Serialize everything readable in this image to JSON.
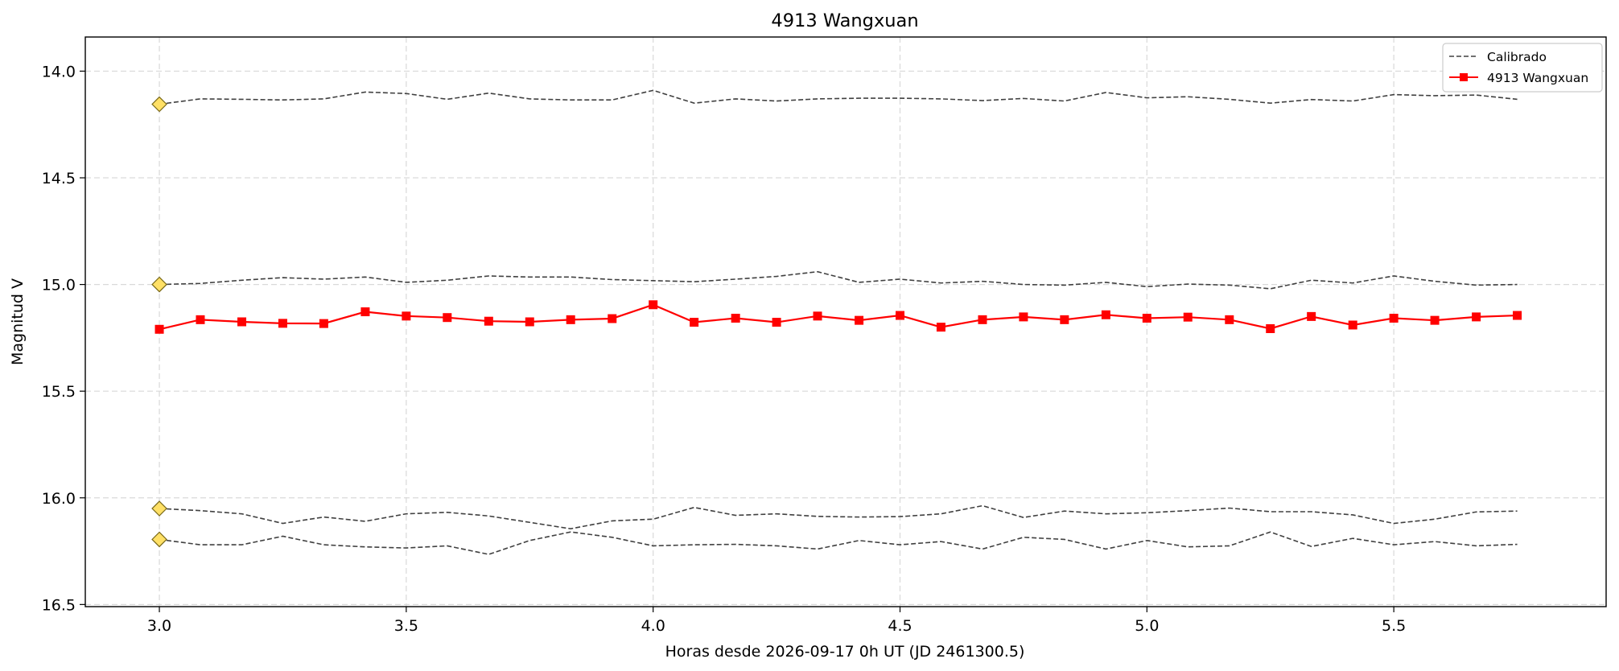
{
  "chart_data": {
    "type": "line",
    "title": "4913 Wangxuan",
    "xlabel": "Horas desde 2026-09-17 0h UT (JD 2461300.5)",
    "ylabel": "Magnitud V",
    "xlim": [
      2.85,
      5.93
    ],
    "ylim": [
      16.51,
      13.84
    ],
    "y_inverted": true,
    "grid": true,
    "x_ticks": [
      3.0,
      3.5,
      4.0,
      4.5,
      5.0,
      5.5
    ],
    "x_tick_labels": [
      "3.0",
      "3.5",
      "4.0",
      "4.5",
      "5.0",
      "5.5"
    ],
    "y_ticks": [
      14.0,
      14.5,
      15.0,
      15.5,
      16.0,
      16.5
    ],
    "y_tick_labels": [
      "14.0",
      "14.5",
      "15.0",
      "15.5",
      "16.0",
      "16.5"
    ],
    "legend": {
      "placement": "top-right",
      "entries": [
        {
          "label": "Calibrado",
          "style": "dashed",
          "color": "#404040"
        },
        {
          "label": "4913 Wangxuan",
          "style": "solid-square",
          "color": "#ff0000"
        }
      ]
    },
    "x": [
      3.0,
      3.083,
      3.167,
      3.25,
      3.333,
      3.417,
      3.5,
      3.583,
      3.667,
      3.75,
      3.833,
      3.917,
      4.0,
      4.083,
      4.167,
      4.25,
      4.333,
      4.417,
      4.5,
      4.583,
      4.667,
      4.75,
      4.833,
      4.917,
      5.0,
      5.083,
      5.167,
      5.25,
      5.333,
      5.417,
      5.5,
      5.583,
      5.667,
      5.75
    ],
    "series": [
      {
        "name": "4913 Wangxuan",
        "color": "#ff0000",
        "marker": "square",
        "values": [
          15.21,
          15.165,
          15.175,
          15.182,
          15.183,
          15.128,
          15.148,
          15.155,
          15.172,
          15.175,
          15.165,
          15.16,
          15.095,
          15.177,
          15.158,
          15.177,
          15.148,
          15.168,
          15.145,
          15.2,
          15.165,
          15.152,
          15.165,
          15.142,
          15.158,
          15.153,
          15.165,
          15.207,
          15.15,
          15.19,
          15.158,
          15.168,
          15.152,
          15.145
        ]
      },
      {
        "name": "Calibrado",
        "color": "#404040",
        "style": "dashed",
        "values": [
          14.155,
          14.13,
          14.132,
          14.135,
          14.13,
          14.098,
          14.105,
          14.132,
          14.103,
          14.13,
          14.135,
          14.135,
          14.09,
          14.15,
          14.13,
          14.14,
          14.13,
          14.127,
          14.127,
          14.13,
          14.138,
          14.128,
          14.14,
          14.1,
          14.125,
          14.12,
          14.132,
          14.15,
          14.133,
          14.14,
          14.11,
          14.115,
          14.112,
          14.132
        ]
      },
      {
        "name": "Calibrado",
        "color": "#404040",
        "style": "dashed",
        "values": [
          15.0,
          14.995,
          14.98,
          14.968,
          14.975,
          14.965,
          14.99,
          14.98,
          14.96,
          14.965,
          14.965,
          14.977,
          14.982,
          14.987,
          14.975,
          14.962,
          14.94,
          14.99,
          14.975,
          14.993,
          14.985,
          15.0,
          15.003,
          14.99,
          15.01,
          14.998,
          15.003,
          15.02,
          14.98,
          14.993,
          14.96,
          14.985,
          15.003,
          15.0
        ]
      },
      {
        "name": "Calibrado",
        "color": "#404040",
        "style": "dashed",
        "values": [
          16.05,
          16.06,
          16.075,
          16.12,
          16.09,
          16.11,
          16.075,
          16.068,
          16.085,
          16.115,
          16.145,
          16.108,
          16.1,
          16.045,
          16.082,
          16.075,
          16.087,
          16.09,
          16.088,
          16.075,
          16.037,
          16.092,
          16.062,
          16.075,
          16.07,
          16.06,
          16.048,
          16.065,
          16.065,
          16.08,
          16.12,
          16.1,
          16.066,
          16.062
        ]
      },
      {
        "name": "Calibrado",
        "color": "#404040",
        "style": "dashed",
        "values": [
          16.195,
          16.22,
          16.22,
          16.18,
          16.22,
          16.23,
          16.235,
          16.225,
          16.265,
          16.2,
          16.16,
          16.185,
          16.225,
          16.22,
          16.218,
          16.225,
          16.24,
          16.2,
          16.22,
          16.205,
          16.24,
          16.185,
          16.195,
          16.24,
          16.2,
          16.23,
          16.225,
          16.16,
          16.228,
          16.19,
          16.22,
          16.205,
          16.225,
          16.218
        ]
      }
    ],
    "comparison_markers": [
      {
        "x": 3.0,
        "y": 14.155,
        "color": "#ffe066"
      },
      {
        "x": 3.0,
        "y": 15.0,
        "color": "#ffe066"
      },
      {
        "x": 3.0,
        "y": 16.05,
        "color": "#ffe066"
      },
      {
        "x": 3.0,
        "y": 16.195,
        "color": "#ffe066"
      }
    ]
  }
}
